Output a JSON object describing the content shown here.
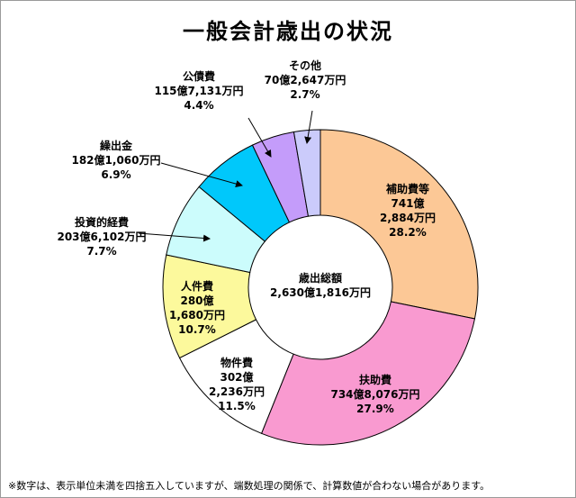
{
  "chart_data": {
    "type": "pie",
    "donut": true,
    "title": "一般会計歳出の状況",
    "center_label": [
      "歳出総額",
      "2,630億1,816万円"
    ],
    "note": "※数字は、表示単位未満を四捨五入していますが、端数処理の関係で、計算数値が合わない場合があります。",
    "slices": [
      {
        "name": "補助費等",
        "amount": "741億2,884万円",
        "value": 28.2,
        "color": "#fcc896",
        "label_lines": [
          "補助費等",
          "741億",
          "2,884万円",
          "28.2%"
        ]
      },
      {
        "name": "扶助費",
        "amount": "734億8,076万円",
        "value": 27.9,
        "color": "#f99ad0",
        "label_lines": [
          "扶助費",
          "734億8,076万円",
          "27.9%"
        ]
      },
      {
        "name": "物件費",
        "amount": "302億2,236万円",
        "value": 11.5,
        "color": "#ffffff",
        "label_lines": [
          "物件費",
          "302億",
          "2,236万円",
          "11.5%"
        ]
      },
      {
        "name": "人件費",
        "amount": "280億1,680万円",
        "value": 10.7,
        "color": "#fcf99c",
        "label_lines": [
          "人件費",
          "280億",
          "1,680万円",
          "10.7%"
        ]
      },
      {
        "name": "投資的経費",
        "amount": "203億6,102万円",
        "value": 7.7,
        "color": "#ccfcfc",
        "label_lines": [
          "投資的経費",
          "203億6,102万円",
          "7.7%"
        ]
      },
      {
        "name": "繰出金",
        "amount": "182億1,060万円",
        "value": 6.9,
        "color": "#00c8fb",
        "label_lines": [
          "繰出金",
          "182億1,060万円",
          "6.9%"
        ]
      },
      {
        "name": "公債費",
        "amount": "115億7,131万円",
        "value": 4.4,
        "color": "#c49cfa",
        "label_lines": [
          "公債費",
          "115億7,131万円",
          "4.4%"
        ]
      },
      {
        "name": "その他",
        "amount": "70億2,647万円",
        "value": 2.7,
        "color": "#cbcbfb",
        "label_lines": [
          "その他",
          "70億2,647万円",
          "2.7%"
        ]
      }
    ]
  }
}
